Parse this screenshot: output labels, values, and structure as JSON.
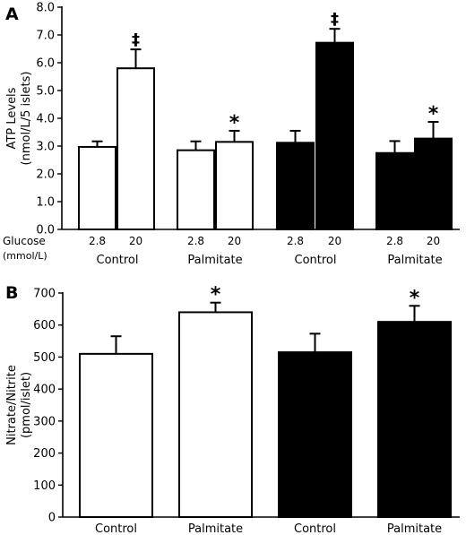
{
  "chart_data": [
    {
      "type": "bar",
      "panel_label": "A",
      "ylabel_line1": "ATP Levels",
      "ylabel_line2": "(nmol/L/5 islets)",
      "ylim": [
        0,
        8
      ],
      "yticks": [
        "0.0",
        "1.0",
        "2.0",
        "3.0",
        "4.0",
        "5.0",
        "6.0",
        "7.0",
        "8.0"
      ],
      "glucose_label": "Glucose",
      "glucose_unit": "(mmol/L)",
      "groups": [
        "Control",
        "Palmitate",
        "Control",
        "Palmitate"
      ],
      "bars": [
        {
          "group": 0,
          "glucose": "2.8",
          "value": 2.97,
          "error": 0.2,
          "fill": "#ffffff",
          "annotation": ""
        },
        {
          "group": 0,
          "glucose": "20",
          "value": 5.8,
          "error": 0.68,
          "fill": "#ffffff",
          "annotation": "‡"
        },
        {
          "group": 1,
          "glucose": "2.8",
          "value": 2.85,
          "error": 0.32,
          "fill": "#ffffff",
          "annotation": ""
        },
        {
          "group": 1,
          "glucose": "20",
          "value": 3.15,
          "error": 0.4,
          "fill": "#ffffff",
          "annotation": "*"
        },
        {
          "group": 2,
          "glucose": "2.8",
          "value": 3.12,
          "error": 0.43,
          "fill": "#000000",
          "annotation": ""
        },
        {
          "group": 2,
          "glucose": "20",
          "value": 6.72,
          "error": 0.5,
          "fill": "#000000",
          "annotation": "‡"
        },
        {
          "group": 3,
          "glucose": "2.8",
          "value": 2.75,
          "error": 0.43,
          "fill": "#000000",
          "annotation": ""
        },
        {
          "group": 3,
          "glucose": "20",
          "value": 3.27,
          "error": 0.6,
          "fill": "#000000",
          "annotation": "*"
        }
      ]
    },
    {
      "type": "bar",
      "panel_label": "B",
      "ylabel_line1": "Nitrate/Nitrite",
      "ylabel_line2": "(pmol/islet)",
      "ylim": [
        0,
        700
      ],
      "yticks": [
        "0",
        "100",
        "200",
        "300",
        "400",
        "500",
        "600",
        "700"
      ],
      "categories": [
        "Control",
        "Palmitate",
        "Control",
        "Palmitate"
      ],
      "bars": [
        {
          "value": 510,
          "error": 55,
          "fill": "#ffffff",
          "annotation": ""
        },
        {
          "value": 640,
          "error": 30,
          "fill": "#ffffff",
          "annotation": "*"
        },
        {
          "value": 515,
          "error": 58,
          "fill": "#000000",
          "annotation": ""
        },
        {
          "value": 610,
          "error": 50,
          "fill": "#000000",
          "annotation": "*"
        }
      ]
    }
  ]
}
